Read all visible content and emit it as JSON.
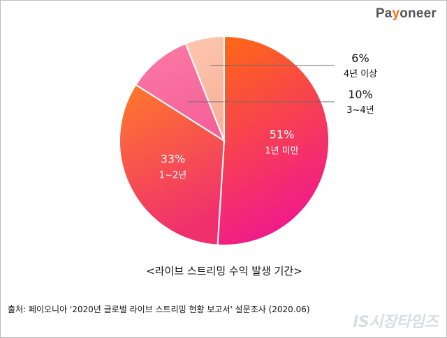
{
  "brand": {
    "logo_text": "Payoneer",
    "logo_prefix": "Pa",
    "logo_accent": "y",
    "logo_suffix": "oneer"
  },
  "chart_data": {
    "type": "pie",
    "title": "<라이브 스트리밍 수익 발생 기간>",
    "slices": [
      {
        "label": "1년 미만",
        "value": 51,
        "value_label": "51%",
        "color_start": "#ff6a13",
        "color_end": "#f01b8a"
      },
      {
        "label": "1~2년",
        "value": 33,
        "value_label": "33%",
        "color_start": "#ff7a2a",
        "color_end": "#f0306e"
      },
      {
        "label": "3~4년",
        "value": 10,
        "value_label": "10%",
        "color_start": "#fb7aa4",
        "color_end": "#f5629a"
      },
      {
        "label": "4년 이상",
        "value": 6,
        "value_label": "6%",
        "color_start": "#fcc9b0",
        "color_end": "#f9b19a"
      }
    ]
  },
  "source_text": "출처: 페이오니아 '2020년 글로벌 라이브 스트리밍 현황 보고서' 설문조사 (2020.06)",
  "watermark": "IS시장타임즈"
}
